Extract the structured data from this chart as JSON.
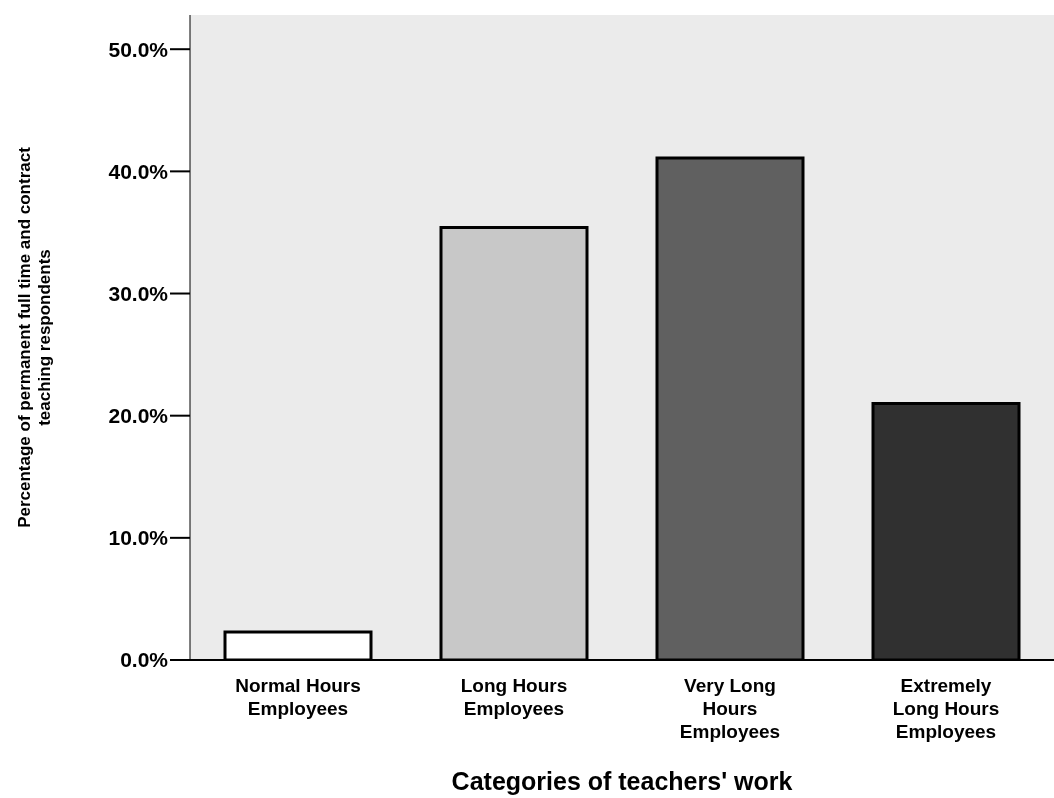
{
  "chart_data": {
    "type": "bar",
    "xlabel": "Categories of teachers' work",
    "ylabel": "Percentage of permanent full time and contract teaching respondents",
    "categories": [
      "Normal Hours Employees",
      "Long Hours Employees",
      "Very Long Hours Employees",
      "Extremely Long Hours Employees"
    ],
    "values": [
      2.3,
      35.4,
      41.1,
      21.0
    ],
    "colors": [
      "#ffffff",
      "#c8c8c8",
      "#606060",
      "#303030"
    ],
    "ylim": [
      0,
      52.8
    ],
    "yticks": [
      {
        "value": 0,
        "label": "0.0%"
      },
      {
        "value": 10,
        "label": "10.0%"
      },
      {
        "value": 20,
        "label": "20.0%"
      },
      {
        "value": 30,
        "label": "30.0%"
      },
      {
        "value": 40,
        "label": "40.0%"
      },
      {
        "value": 50,
        "label": "50.0%"
      }
    ],
    "grid": false
  }
}
